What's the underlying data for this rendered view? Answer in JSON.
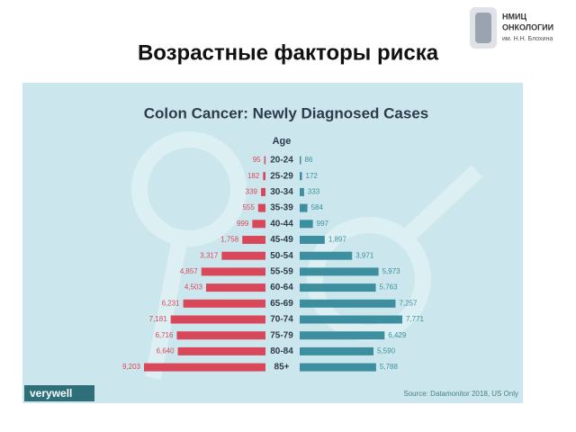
{
  "slide": {
    "title": "Возрастные факторы риска",
    "logo": [
      "НМИЦ",
      "ОНКОЛОГИИ",
      "им. Н.Н. Блохина"
    ]
  },
  "chart_data": {
    "type": "bar",
    "title": "Colon Cancer: Newly Diagnosed Cases",
    "category_label": "Age",
    "categories": [
      "20-24",
      "25-29",
      "30-34",
      "35-39",
      "40-44",
      "45-49",
      "50-54",
      "55-59",
      "60-64",
      "65-69",
      "70-74",
      "75-79",
      "80-84",
      "85+"
    ],
    "series": [
      {
        "color": "#d9475a",
        "values": [
          95,
          182,
          339,
          555,
          999,
          1758,
          3317,
          4857,
          4503,
          6231,
          7181,
          6716,
          6640,
          9203
        ],
        "value_labels": [
          "95",
          "182",
          "339",
          "555",
          "999",
          "1,758",
          "3,317",
          "4,857",
          "4,503",
          "6,231",
          "7,181",
          "6,716",
          "6,640",
          "9,203"
        ]
      },
      {
        "color": "#3d8fa0",
        "values": [
          86,
          172,
          333,
          584,
          997,
          1897,
          3971,
          5973,
          5763,
          7257,
          7771,
          6429,
          5590,
          5788
        ],
        "value_labels": [
          "86",
          "172",
          "333",
          "584",
          "997",
          "1,897",
          "3,971",
          "5,973",
          "5,763",
          "7,257",
          "7,771",
          "6,429",
          "5,590",
          "5,788"
        ]
      }
    ],
    "brand": "verywell",
    "source": "Source: Datamonitor 2018, US Only"
  }
}
